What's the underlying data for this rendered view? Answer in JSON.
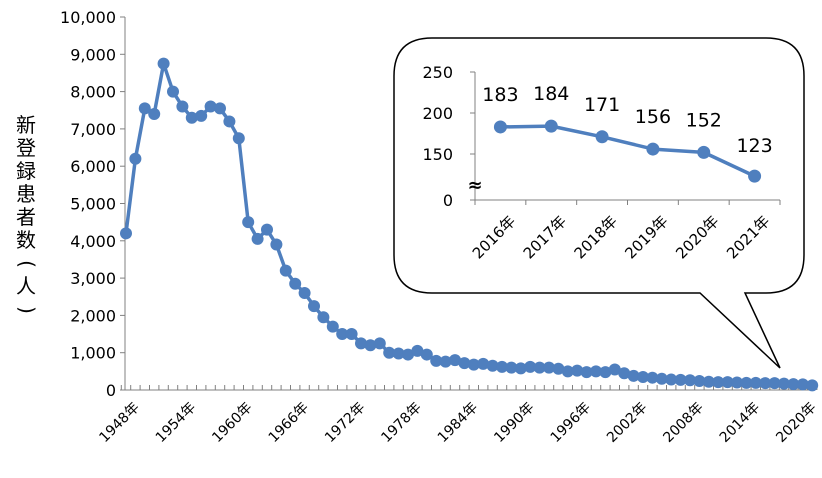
{
  "chart_data": [
    {
      "type": "line",
      "ylabel": "新登録患者数(人)",
      "ylim": [
        0,
        10000
      ],
      "yticks": [
        "0",
        "1,000",
        "2,000",
        "3,000",
        "4,000",
        "5,000",
        "6,000",
        "7,000",
        "8,000",
        "9,000",
        "10,000"
      ],
      "xtick_labels": [
        "1948年",
        "1954年",
        "1960年",
        "1966年",
        "1972年",
        "1978年",
        "1984年",
        "1990年",
        "1996年",
        "2002年",
        "2008年",
        "2014年",
        "2020年"
      ],
      "x_start": 1948,
      "x_end": 2021,
      "series": [
        {
          "x": [
            1948,
            1949,
            1950,
            1951,
            1952,
            1953,
            1954,
            1955,
            1956,
            1957,
            1958,
            1959,
            1960,
            1961,
            1962,
            1963,
            1964,
            1965,
            1966,
            1967,
            1968,
            1969,
            1970,
            1971,
            1972,
            1973,
            1974,
            1975,
            1976,
            1977,
            1978,
            1979,
            1980,
            1981,
            1982,
            1983,
            1984,
            1985,
            1986,
            1987,
            1988,
            1989,
            1990,
            1991,
            1992,
            1993,
            1994,
            1995,
            1996,
            1997,
            1998,
            1999,
            2000,
            2001,
            2002,
            2003,
            2004,
            2005,
            2006,
            2007,
            2008,
            2009,
            2010,
            2011,
            2012,
            2013,
            2014,
            2015,
            2016,
            2017,
            2018,
            2019,
            2020,
            2021
          ],
          "values": [
            4200,
            6200,
            7550,
            7400,
            8750,
            8000,
            7600,
            7300,
            7350,
            7600,
            7550,
            7200,
            6750,
            4500,
            4050,
            4300,
            3900,
            3200,
            2850,
            2600,
            2250,
            1950,
            1700,
            1500,
            1500,
            1250,
            1200,
            1250,
            1000,
            980,
            950,
            1050,
            950,
            780,
            760,
            800,
            720,
            680,
            700,
            650,
            620,
            600,
            580,
            620,
            600,
            600,
            570,
            500,
            520,
            480,
            500,
            480,
            550,
            450,
            380,
            350,
            330,
            300,
            280,
            270,
            260,
            240,
            220,
            210,
            210,
            200,
            190,
            190,
            183,
            184,
            171,
            156,
            152,
            123
          ],
          "color": "#4F7FBE"
        }
      ]
    },
    {
      "type": "line",
      "categories": [
        "2016年",
        "2017年",
        "2018年",
        "2019年",
        "2020年",
        "2021年"
      ],
      "values": [
        183,
        184,
        171,
        156,
        152,
        123
      ],
      "data_labels": [
        "183",
        "184",
        "171",
        "156",
        "152",
        "123"
      ],
      "yticks": [
        "0",
        "150",
        "200",
        "250"
      ],
      "axis_break": "≈",
      "ylim": [
        100,
        250
      ],
      "color": "#4F7FBE"
    }
  ]
}
